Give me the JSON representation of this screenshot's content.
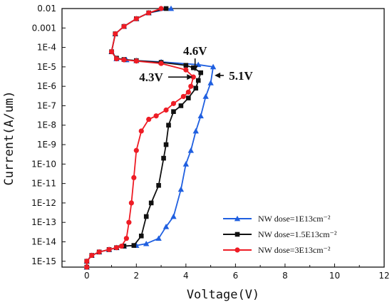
{
  "chart_data": {
    "type": "line",
    "title": "",
    "xlabel": "Voltage(V)",
    "ylabel": "Current(A/um)",
    "xscale": "linear",
    "yscale": "log",
    "xlim": [
      -1,
      12
    ],
    "ylim": [
      5e-16,
      0.01
    ],
    "xticks": [
      "0",
      "2",
      "4",
      "6",
      "8",
      "10",
      "12"
    ],
    "yticks": [
      "0.01",
      "0.001",
      "1E-4",
      "1E-5",
      "1E-6",
      "1E-7",
      "1E-8",
      "1E-9",
      "1E-10",
      "1E-11",
      "1E-12",
      "1E-13",
      "1E-14",
      "1E-15"
    ],
    "grid": false,
    "legend_position": "bottom-right",
    "series": [
      {
        "name": "NW dose=1E13cm⁻²",
        "color": "#1f5fe0",
        "marker": "triangle",
        "points": [
          [
            0.0,
            5e-16
          ],
          [
            0.0,
            1e-15
          ],
          [
            0.2,
            2e-15
          ],
          [
            0.5,
            3e-15
          ],
          [
            0.9,
            4e-15
          ],
          [
            1.2,
            5e-15
          ],
          [
            1.5,
            6e-15
          ],
          [
            2.0,
            6.5e-15
          ],
          [
            2.4,
            8e-15
          ],
          [
            2.9,
            1.5e-14
          ],
          [
            3.2,
            6e-14
          ],
          [
            3.5,
            2e-13
          ],
          [
            3.8,
            5e-12
          ],
          [
            4.0,
            1e-10
          ],
          [
            4.2,
            5e-10
          ],
          [
            4.4,
            5e-09
          ],
          [
            4.6,
            3e-08
          ],
          [
            4.8,
            3e-07
          ],
          [
            5.0,
            1.5e-06
          ],
          [
            5.1,
            1e-05
          ],
          [
            4.5,
            1.3e-05
          ],
          [
            3.0,
            1.8e-05
          ],
          [
            2.0,
            2.1e-05
          ],
          [
            1.6,
            2.3e-05
          ],
          [
            1.2,
            2.6e-05
          ],
          [
            1.0,
            6e-05
          ],
          [
            1.15,
            0.0005
          ],
          [
            1.5,
            0.0012
          ],
          [
            2.0,
            0.003
          ],
          [
            2.5,
            0.006
          ],
          [
            3.4,
            0.01
          ]
        ]
      },
      {
        "name": "NW dose=1.5E13cm⁻²",
        "color": "#111111",
        "marker": "square",
        "points": [
          [
            0.0,
            5e-16
          ],
          [
            0.0,
            1e-15
          ],
          [
            0.2,
            2e-15
          ],
          [
            0.5,
            3e-15
          ],
          [
            0.9,
            4e-15
          ],
          [
            1.2,
            5e-15
          ],
          [
            1.5,
            6e-15
          ],
          [
            1.9,
            6.5e-15
          ],
          [
            2.2,
            2e-14
          ],
          [
            2.4,
            2e-13
          ],
          [
            2.6,
            1e-12
          ],
          [
            2.9,
            8e-12
          ],
          [
            3.1,
            2e-10
          ],
          [
            3.2,
            1e-09
          ],
          [
            3.3,
            1e-08
          ],
          [
            3.5,
            5e-08
          ],
          [
            3.8,
            1e-07
          ],
          [
            4.1,
            2.5e-07
          ],
          [
            4.4,
            8e-07
          ],
          [
            4.5,
            2e-06
          ],
          [
            4.6,
            5e-06
          ],
          [
            4.3,
            9e-06
          ],
          [
            4.0,
            1.2e-05
          ],
          [
            3.0,
            1.7e-05
          ],
          [
            2.0,
            2.1e-05
          ],
          [
            1.5,
            2.4e-05
          ],
          [
            1.2,
            2.8e-05
          ],
          [
            1.0,
            6e-05
          ],
          [
            1.15,
            0.0005
          ],
          [
            1.5,
            0.0012
          ],
          [
            2.0,
            0.003
          ],
          [
            2.5,
            0.006
          ],
          [
            3.2,
            0.01
          ]
        ]
      },
      {
        "name": "NW dose=3E13cm⁻²",
        "color": "#ee1c25",
        "marker": "circle",
        "points": [
          [
            0.0,
            5e-16
          ],
          [
            0.0,
            1e-15
          ],
          [
            0.2,
            2e-15
          ],
          [
            0.5,
            3e-15
          ],
          [
            0.9,
            4e-15
          ],
          [
            1.2,
            5e-15
          ],
          [
            1.4,
            6e-15
          ],
          [
            1.6,
            1.5e-14
          ],
          [
            1.7,
            1e-13
          ],
          [
            1.8,
            1e-12
          ],
          [
            1.9,
            2e-11
          ],
          [
            2.0,
            5e-10
          ],
          [
            2.2,
            5e-09
          ],
          [
            2.5,
            2e-08
          ],
          [
            2.8,
            3e-08
          ],
          [
            3.2,
            6e-08
          ],
          [
            3.5,
            1.3e-07
          ],
          [
            3.9,
            3e-07
          ],
          [
            4.1,
            5e-07
          ],
          [
            4.2,
            1e-06
          ],
          [
            4.3,
            3e-06
          ],
          [
            4.0,
            7e-06
          ],
          [
            3.0,
            1.5e-05
          ],
          [
            2.0,
            2e-05
          ],
          [
            1.5,
            2.3e-05
          ],
          [
            1.2,
            2.6e-05
          ],
          [
            1.0,
            6e-05
          ],
          [
            1.15,
            0.0005
          ],
          [
            1.5,
            0.0012
          ],
          [
            2.0,
            0.003
          ],
          [
            2.5,
            0.006
          ],
          [
            3.0,
            0.01
          ]
        ]
      }
    ],
    "annotations": [
      {
        "text": "4.6V",
        "x": 4.6,
        "y": 5e-06
      },
      {
        "text": "4.3V",
        "x": 4.3,
        "y": 3e-06
      },
      {
        "text": "5.1V",
        "x": 5.1,
        "y": 1e-05
      }
    ]
  }
}
